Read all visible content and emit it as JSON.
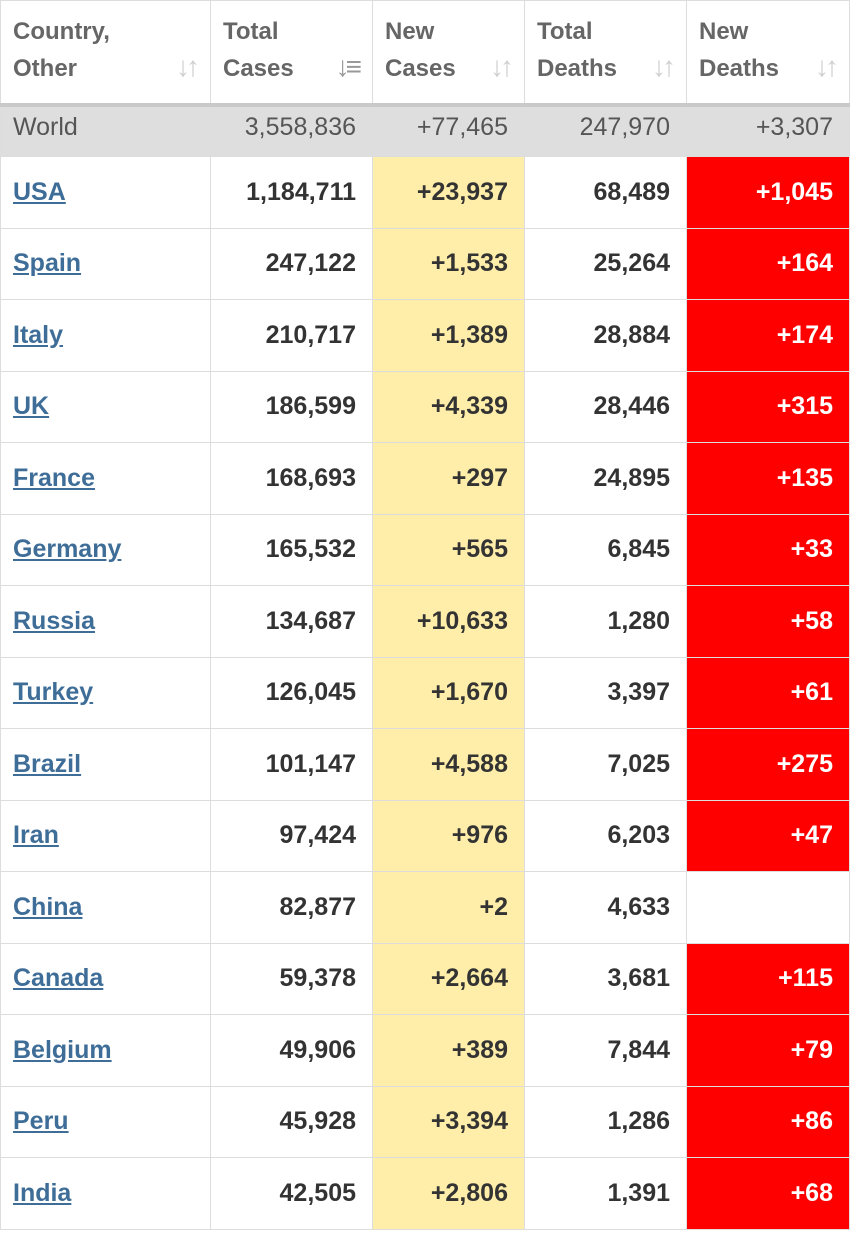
{
  "colors": {
    "new_cases_bg": "#ffeeaa",
    "new_deaths_bg": "#ff0000",
    "link": "#3e6d98",
    "world_row_bg": "#dedede",
    "header_text": "#666666"
  },
  "headers": [
    {
      "line1": "Country,",
      "line2": "Other",
      "icon": "sort-icon"
    },
    {
      "line1": "Total",
      "line2": "Cases",
      "icon": "sort-desc-icon"
    },
    {
      "line1": "New",
      "line2": "Cases",
      "icon": "sort-icon"
    },
    {
      "line1": "Total",
      "line2": "Deaths",
      "icon": "sort-icon"
    },
    {
      "line1": "New",
      "line2": "Deaths",
      "icon": "sort-icon"
    }
  ],
  "world": {
    "name": "World",
    "total_cases": "3,558,836",
    "new_cases": "+77,465",
    "total_deaths": "247,970",
    "new_deaths": "+3,307"
  },
  "rows": [
    {
      "country": "USA",
      "total_cases": "1,184,711",
      "new_cases": "+23,937",
      "total_deaths": "68,489",
      "new_deaths": "+1,045"
    },
    {
      "country": "Spain",
      "total_cases": "247,122",
      "new_cases": "+1,533",
      "total_deaths": "25,264",
      "new_deaths": "+164"
    },
    {
      "country": "Italy",
      "total_cases": "210,717",
      "new_cases": "+1,389",
      "total_deaths": "28,884",
      "new_deaths": "+174"
    },
    {
      "country": "UK",
      "total_cases": "186,599",
      "new_cases": "+4,339",
      "total_deaths": "28,446",
      "new_deaths": "+315"
    },
    {
      "country": "France",
      "total_cases": "168,693",
      "new_cases": "+297",
      "total_deaths": "24,895",
      "new_deaths": "+135"
    },
    {
      "country": "Germany",
      "total_cases": "165,532",
      "new_cases": "+565",
      "total_deaths": "6,845",
      "new_deaths": "+33"
    },
    {
      "country": "Russia",
      "total_cases": "134,687",
      "new_cases": "+10,633",
      "total_deaths": "1,280",
      "new_deaths": "+58"
    },
    {
      "country": "Turkey",
      "total_cases": "126,045",
      "new_cases": "+1,670",
      "total_deaths": "3,397",
      "new_deaths": "+61"
    },
    {
      "country": "Brazil",
      "total_cases": "101,147",
      "new_cases": "+4,588",
      "total_deaths": "7,025",
      "new_deaths": "+275"
    },
    {
      "country": "Iran",
      "total_cases": "97,424",
      "new_cases": "+976",
      "total_deaths": "6,203",
      "new_deaths": "+47"
    },
    {
      "country": "China",
      "total_cases": "82,877",
      "new_cases": "+2",
      "total_deaths": "4,633",
      "new_deaths": ""
    },
    {
      "country": "Canada",
      "total_cases": "59,378",
      "new_cases": "+2,664",
      "total_deaths": "3,681",
      "new_deaths": "+115"
    },
    {
      "country": "Belgium",
      "total_cases": "49,906",
      "new_cases": "+389",
      "total_deaths": "7,844",
      "new_deaths": "+79"
    },
    {
      "country": "Peru",
      "total_cases": "45,928",
      "new_cases": "+3,394",
      "total_deaths": "1,286",
      "new_deaths": "+86"
    },
    {
      "country": "India",
      "total_cases": "42,505",
      "new_cases": "+2,806",
      "total_deaths": "1,391",
      "new_deaths": "+68"
    }
  ]
}
